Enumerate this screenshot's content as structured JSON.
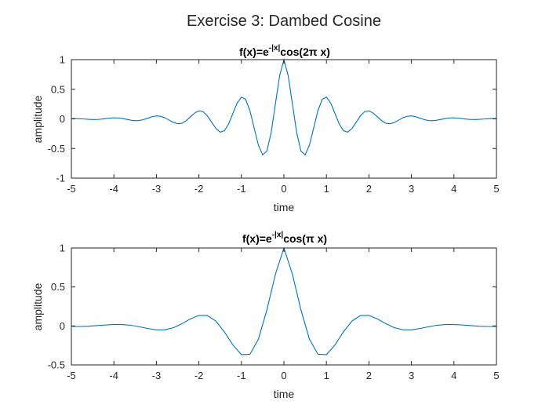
{
  "figure": {
    "suptitle": "Exercise 3: Dambed Cosine"
  },
  "colors": {
    "line": "#0072BD",
    "axis": "#262626",
    "text": "#262626",
    "background": "#ffffff"
  },
  "chart_data": [
    {
      "type": "line",
      "title_prefix": "f(x)=e",
      "title_exponent": "-|x|",
      "title_suffix": "cos(2π x)",
      "xlabel": "time",
      "ylabel": "amplitude",
      "xlim": [
        -5,
        5
      ],
      "ylim": [
        -1,
        1
      ],
      "xticks": [
        -5,
        -4,
        -3,
        -2,
        -1,
        0,
        1,
        2,
        3,
        4,
        5
      ],
      "yticks": [
        -1,
        -0.5,
        0,
        0.5,
        1
      ],
      "xtick_labels": [
        "-5",
        "-4",
        "-3",
        "-2",
        "-1",
        "0",
        "1",
        "2",
        "3",
        "4",
        "5"
      ],
      "ytick_labels": [
        "-1",
        "-0.5",
        "0",
        "0.5",
        "1"
      ],
      "grid": false,
      "series": [
        {
          "color": "#0072BD",
          "x": [
            -5,
            -4.9,
            -4.8,
            -4.7,
            -4.6,
            -4.5,
            -4.4,
            -4.3,
            -4.2,
            -4.1,
            -4,
            -3.9,
            -3.8,
            -3.7,
            -3.6,
            -3.5,
            -3.4,
            -3.3,
            -3.2,
            -3.1,
            -3,
            -2.9,
            -2.8,
            -2.7,
            -2.6,
            -2.5,
            -2.4,
            -2.3,
            -2.2,
            -2.1,
            -2,
            -1.9,
            -1.8,
            -1.7,
            -1.6,
            -1.5,
            -1.4,
            -1.3,
            -1.2,
            -1.1,
            -1,
            -0.9,
            -0.8,
            -0.7,
            -0.6,
            -0.5,
            -0.4,
            -0.3,
            -0.2,
            -0.1,
            0,
            0.1,
            0.2,
            0.3,
            0.4,
            0.5,
            0.6,
            0.7,
            0.8,
            0.9,
            1,
            1.1,
            1.2,
            1.3,
            1.4,
            1.5,
            1.6,
            1.7,
            1.8,
            1.9,
            2,
            2.1,
            2.2,
            2.3,
            2.4,
            2.5,
            2.6,
            2.7,
            2.8,
            2.9,
            3,
            3.1,
            3.2,
            3.3,
            3.4,
            3.5,
            3.6,
            3.7,
            3.8,
            3.9,
            4,
            4.1,
            4.2,
            4.3,
            4.4,
            4.5,
            4.6,
            4.7,
            4.8,
            4.9,
            5
          ],
          "y": [
            0.0067,
            0.006,
            0.0025,
            -0.0017,
            -0.0081,
            -0.0111,
            -0.01,
            -0.0042,
            0.0046,
            0.0134,
            0.0183,
            0.0164,
            0.0069,
            -0.0076,
            -0.0221,
            -0.0302,
            -0.027,
            -0.0114,
            0.0126,
            0.0364,
            0.0498,
            0.0445,
            0.0188,
            -0.0208,
            -0.06,
            -0.0821,
            -0.0734,
            -0.031,
            0.0343,
            0.0989,
            0.1353,
            0.121,
            0.0511,
            -0.0565,
            -0.1631,
            -0.2231,
            -0.1995,
            -0.0843,
            0.0932,
            0.2689,
            0.3679,
            0.329,
            0.139,
            -0.1537,
            -0.4434,
            -0.6065,
            -0.5424,
            -0.2292,
            0.2531,
            0.7311,
            1,
            0.7311,
            0.2531,
            -0.2292,
            -0.5424,
            -0.6065,
            -0.4434,
            -0.1537,
            0.139,
            0.329,
            0.3679,
            0.2689,
            0.0932,
            -0.0843,
            -0.1995,
            -0.2231,
            -0.1631,
            -0.0565,
            0.0511,
            0.121,
            0.1353,
            0.0989,
            0.0343,
            -0.031,
            -0.0734,
            -0.0821,
            -0.06,
            -0.0208,
            0.0188,
            0.0445,
            0.0498,
            0.0364,
            0.0126,
            -0.0114,
            -0.027,
            -0.0302,
            -0.0221,
            -0.0076,
            0.0069,
            0.0164,
            0.0183,
            0.0134,
            0.0046,
            -0.0042,
            -0.01,
            -0.0111,
            -0.0081,
            -0.0017,
            0.0025,
            0.006,
            0.0067
          ]
        }
      ]
    },
    {
      "type": "line",
      "title_prefix": "f(x)=e",
      "title_exponent": "-|x|",
      "title_suffix": "cos(π x)",
      "xlabel": "time",
      "ylabel": "amplitude",
      "xlim": [
        -5,
        5
      ],
      "ylim": [
        -0.5,
        1
      ],
      "xticks": [
        -5,
        -4,
        -3,
        -2,
        -1,
        0,
        1,
        2,
        3,
        4,
        5
      ],
      "yticks": [
        -0.5,
        0,
        0.5,
        1
      ],
      "xtick_labels": [
        "-5",
        "-4",
        "-3",
        "-2",
        "-1",
        "0",
        "1",
        "2",
        "3",
        "4",
        "5"
      ],
      "ytick_labels": [
        "-0.5",
        "0",
        "0.5",
        "1"
      ],
      "grid": false,
      "series": [
        {
          "color": "#0072BD",
          "x": [
            -5,
            -4.8,
            -4.6,
            -4.4,
            -4.2,
            -4,
            -3.8,
            -3.6,
            -3.4,
            -3.2,
            -3,
            -2.8,
            -2.6,
            -2.4,
            -2.2,
            -2,
            -1.8,
            -1.6,
            -1.4,
            -1.2,
            -1,
            -0.8,
            -0.6,
            -0.4,
            -0.2,
            0,
            0.2,
            0.4,
            0.6,
            0.8,
            1,
            1.2,
            1.4,
            1.6,
            1.8,
            2,
            2.2,
            2.4,
            2.6,
            2.8,
            3,
            3.2,
            3.4,
            3.6,
            3.8,
            4,
            4.2,
            4.4,
            4.6,
            4.8,
            5
          ],
          "y": [
            -0.0067,
            -0.0067,
            -0.0031,
            0.0038,
            0.0121,
            0.0183,
            0.0181,
            0.0084,
            -0.0103,
            -0.033,
            -0.0498,
            -0.0491,
            -0.0228,
            0.028,
            0.0897,
            0.1353,
            0.1336,
            0.0626,
            -0.0762,
            -0.2439,
            -0.3679,
            -0.3637,
            -0.1696,
            0.2067,
            0.663,
            1,
            0.663,
            0.2067,
            -0.1696,
            -0.3637,
            -0.3679,
            -0.2439,
            -0.0762,
            0.0626,
            0.1336,
            0.1353,
            0.0897,
            0.028,
            -0.0228,
            -0.0491,
            -0.0498,
            -0.033,
            -0.0103,
            0.0084,
            0.0181,
            0.0183,
            0.0121,
            0.0038,
            -0.0031,
            -0.0067,
            -0.0067
          ]
        }
      ]
    }
  ]
}
